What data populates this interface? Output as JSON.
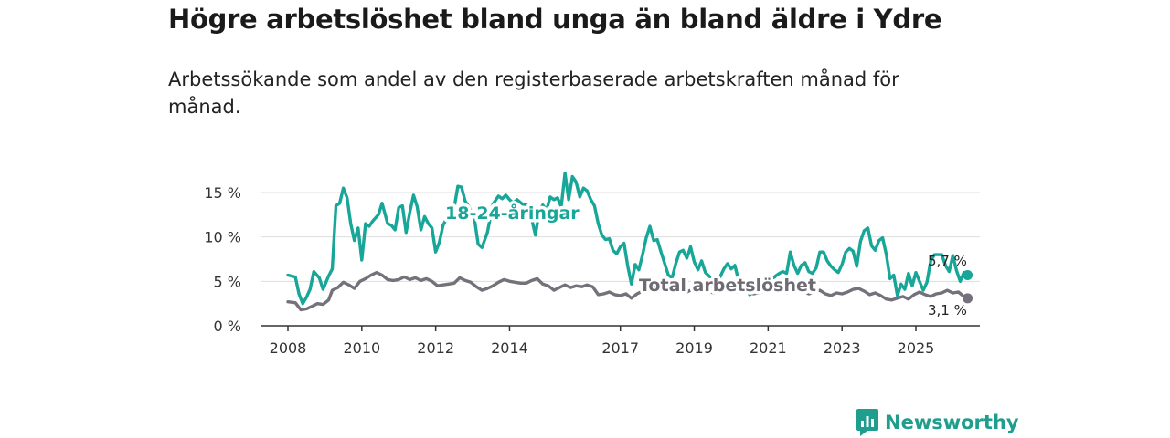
{
  "title": "Högre arbetslöshet bland unga än bland äldre i Ydre",
  "subtitle": "Arbetssökande som andel av den registerbaserade arbetskraften månad för månad.",
  "brand": {
    "name": "Newsworthy",
    "icon": "bar-chart-speech-bubble-icon"
  },
  "colors": {
    "youth": "#17a697",
    "total": "#75717a",
    "grid": "#dddddd",
    "axis": "#333333",
    "brand": "#1f9e8e"
  },
  "chart_data": {
    "type": "line",
    "title": "Högre arbetslöshet bland unga än bland äldre i Ydre",
    "xlabel": "",
    "ylabel": "",
    "xlim": [
      2007.9,
      2026.5
    ],
    "ylim": [
      0,
      17.5
    ],
    "y_ticks": [
      0,
      5,
      10,
      15
    ],
    "y_tick_labels": [
      "0 %",
      "5 %",
      "10 %",
      "15 %"
    ],
    "x_ticks": [
      2008,
      2010,
      2012,
      2014,
      2017,
      2019,
      2021,
      2023,
      2025
    ],
    "x_tick_labels": [
      "2008",
      "2010",
      "2012",
      "2014",
      "2017",
      "2019",
      "2021",
      "2023",
      "2025"
    ],
    "gridlines": "horizontal",
    "series": [
      {
        "name": "18-24-åringar",
        "label": "18-24-åringar",
        "end_label": "5,7 %",
        "color": "#17a697",
        "points": [
          [
            2008.0,
            5.7
          ],
          [
            2008.2,
            5.5
          ],
          [
            2008.3,
            3.6
          ],
          [
            2008.4,
            2.5
          ],
          [
            2008.5,
            3.2
          ],
          [
            2008.6,
            4.1
          ],
          [
            2008.7,
            6.1
          ],
          [
            2008.85,
            5.4
          ],
          [
            2008.95,
            4.1
          ],
          [
            2009.1,
            5.6
          ],
          [
            2009.2,
            6.4
          ],
          [
            2009.3,
            13.5
          ],
          [
            2009.4,
            13.8
          ],
          [
            2009.5,
            15.5
          ],
          [
            2009.6,
            14.4
          ],
          [
            2009.7,
            11.5
          ],
          [
            2009.8,
            9.6
          ],
          [
            2009.9,
            11.0
          ],
          [
            2010.0,
            7.4
          ],
          [
            2010.1,
            11.5
          ],
          [
            2010.2,
            11.2
          ],
          [
            2010.3,
            11.8
          ],
          [
            2010.45,
            12.5
          ],
          [
            2010.55,
            13.8
          ],
          [
            2010.7,
            11.5
          ],
          [
            2010.8,
            11.3
          ],
          [
            2010.9,
            10.8
          ],
          [
            2011.0,
            13.3
          ],
          [
            2011.1,
            13.5
          ],
          [
            2011.2,
            10.5
          ],
          [
            2011.3,
            12.8
          ],
          [
            2011.4,
            14.7
          ],
          [
            2011.5,
            13.4
          ],
          [
            2011.6,
            10.8
          ],
          [
            2011.7,
            12.3
          ],
          [
            2011.8,
            11.5
          ],
          [
            2011.9,
            11.0
          ],
          [
            2012.0,
            8.3
          ],
          [
            2012.1,
            9.4
          ],
          [
            2012.2,
            11.3
          ],
          [
            2012.35,
            12.5
          ],
          [
            2012.5,
            13.3
          ],
          [
            2012.6,
            15.7
          ],
          [
            2012.7,
            15.6
          ],
          [
            2012.8,
            14.0
          ],
          [
            2012.9,
            13.4
          ],
          [
            2013.05,
            12.0
          ],
          [
            2013.15,
            9.2
          ],
          [
            2013.25,
            8.8
          ],
          [
            2013.4,
            10.5
          ],
          [
            2013.55,
            13.7
          ],
          [
            2013.7,
            14.6
          ],
          [
            2013.8,
            14.3
          ],
          [
            2013.9,
            14.7
          ],
          [
            2014.0,
            14.2
          ],
          [
            2014.1,
            13.8
          ],
          [
            2014.2,
            14.2
          ],
          [
            2014.35,
            13.7
          ],
          [
            2014.5,
            13.6
          ],
          [
            2014.6,
            12.0
          ],
          [
            2014.7,
            10.2
          ],
          [
            2014.8,
            12.8
          ],
          [
            2014.9,
            13.6
          ],
          [
            2015.0,
            13.0
          ],
          [
            2015.1,
            14.5
          ],
          [
            2015.2,
            14.2
          ],
          [
            2015.3,
            14.4
          ],
          [
            2015.4,
            13.4
          ],
          [
            2015.5,
            17.2
          ],
          [
            2015.6,
            14.2
          ],
          [
            2015.7,
            16.8
          ],
          [
            2015.8,
            16.2
          ],
          [
            2015.9,
            14.5
          ],
          [
            2016.0,
            15.5
          ],
          [
            2016.1,
            15.2
          ],
          [
            2016.2,
            14.2
          ],
          [
            2016.3,
            13.5
          ],
          [
            2016.4,
            11.5
          ],
          [
            2016.5,
            10.2
          ],
          [
            2016.6,
            9.7
          ],
          [
            2016.7,
            9.8
          ],
          [
            2016.8,
            8.5
          ],
          [
            2016.9,
            8.1
          ],
          [
            2017.0,
            8.9
          ],
          [
            2017.1,
            9.3
          ],
          [
            2017.2,
            6.7
          ],
          [
            2017.3,
            4.7
          ],
          [
            2017.4,
            6.9
          ],
          [
            2017.5,
            6.3
          ],
          [
            2017.6,
            8.0
          ],
          [
            2017.7,
            9.9
          ],
          [
            2017.8,
            11.2
          ],
          [
            2017.9,
            9.6
          ],
          [
            2018.0,
            9.7
          ],
          [
            2018.1,
            8.3
          ],
          [
            2018.2,
            7.0
          ],
          [
            2018.3,
            5.7
          ],
          [
            2018.4,
            5.4
          ],
          [
            2018.5,
            7.0
          ],
          [
            2018.6,
            8.3
          ],
          [
            2018.7,
            8.5
          ],
          [
            2018.8,
            7.6
          ],
          [
            2018.9,
            8.9
          ],
          [
            2019.0,
            7.2
          ],
          [
            2019.1,
            6.3
          ],
          [
            2019.2,
            7.3
          ],
          [
            2019.3,
            6.0
          ],
          [
            2019.45,
            5.4
          ],
          [
            2019.55,
            4.4
          ],
          [
            2019.7,
            5.5
          ],
          [
            2019.8,
            6.4
          ],
          [
            2019.9,
            7.0
          ],
          [
            2020.0,
            6.4
          ],
          [
            2020.1,
            6.8
          ],
          [
            2020.2,
            5.1
          ],
          [
            2020.35,
            4.6
          ],
          [
            2020.5,
            3.5
          ],
          [
            2020.65,
            3.9
          ],
          [
            2020.8,
            4.4
          ],
          [
            2020.9,
            4.9
          ],
          [
            2021.0,
            5.4
          ],
          [
            2021.1,
            5.1
          ],
          [
            2021.2,
            5.6
          ],
          [
            2021.3,
            5.9
          ],
          [
            2021.4,
            6.1
          ],
          [
            2021.5,
            5.9
          ],
          [
            2021.6,
            8.3
          ],
          [
            2021.7,
            6.8
          ],
          [
            2021.8,
            5.9
          ],
          [
            2021.9,
            6.8
          ],
          [
            2022.0,
            7.1
          ],
          [
            2022.1,
            6.1
          ],
          [
            2022.2,
            5.9
          ],
          [
            2022.3,
            6.5
          ],
          [
            2022.4,
            8.3
          ],
          [
            2022.5,
            8.3
          ],
          [
            2022.6,
            7.3
          ],
          [
            2022.7,
            6.7
          ],
          [
            2022.8,
            6.3
          ],
          [
            2022.9,
            6.0
          ],
          [
            2023.0,
            6.9
          ],
          [
            2023.1,
            8.3
          ],
          [
            2023.2,
            8.7
          ],
          [
            2023.3,
            8.4
          ],
          [
            2023.4,
            6.7
          ],
          [
            2023.5,
            9.5
          ],
          [
            2023.6,
            10.7
          ],
          [
            2023.7,
            11.0
          ],
          [
            2023.8,
            9.0
          ],
          [
            2023.9,
            8.5
          ],
          [
            2024.0,
            9.6
          ],
          [
            2024.1,
            9.9
          ],
          [
            2024.2,
            8.0
          ],
          [
            2024.3,
            5.3
          ],
          [
            2024.4,
            5.7
          ],
          [
            2024.5,
            3.4
          ],
          [
            2024.6,
            4.7
          ],
          [
            2024.7,
            4.1
          ],
          [
            2024.8,
            5.9
          ],
          [
            2024.9,
            4.5
          ],
          [
            2025.0,
            6.0
          ],
          [
            2025.1,
            5.0
          ],
          [
            2025.2,
            4.0
          ],
          [
            2025.3,
            4.9
          ],
          [
            2025.4,
            7.3
          ],
          [
            2025.5,
            8.0
          ],
          [
            2025.6,
            8.0
          ],
          [
            2025.7,
            8.0
          ],
          [
            2025.8,
            6.8
          ],
          [
            2025.9,
            6.1
          ],
          [
            2026.0,
            7.9
          ],
          [
            2026.1,
            6.2
          ],
          [
            2026.2,
            5.0
          ],
          [
            2026.3,
            6.0
          ],
          [
            2026.4,
            5.7
          ]
        ]
      },
      {
        "name": "Total arbetslöshet",
        "label": "Total arbetslöshet",
        "end_label": "3,1 %",
        "color": "#75717a",
        "points": [
          [
            2008.0,
            2.7
          ],
          [
            2008.2,
            2.6
          ],
          [
            2008.35,
            1.8
          ],
          [
            2008.5,
            1.9
          ],
          [
            2008.65,
            2.2
          ],
          [
            2008.8,
            2.5
          ],
          [
            2008.95,
            2.4
          ],
          [
            2009.1,
            2.9
          ],
          [
            2009.2,
            4.0
          ],
          [
            2009.35,
            4.3
          ],
          [
            2009.5,
            4.9
          ],
          [
            2009.65,
            4.6
          ],
          [
            2009.8,
            4.2
          ],
          [
            2009.95,
            5.0
          ],
          [
            2010.1,
            5.3
          ],
          [
            2010.25,
            5.7
          ],
          [
            2010.4,
            6.0
          ],
          [
            2010.55,
            5.7
          ],
          [
            2010.7,
            5.2
          ],
          [
            2010.85,
            5.1
          ],
          [
            2011.0,
            5.2
          ],
          [
            2011.15,
            5.5
          ],
          [
            2011.3,
            5.2
          ],
          [
            2011.45,
            5.4
          ],
          [
            2011.6,
            5.1
          ],
          [
            2011.75,
            5.3
          ],
          [
            2011.9,
            5.0
          ],
          [
            2012.05,
            4.5
          ],
          [
            2012.2,
            4.6
          ],
          [
            2012.35,
            4.7
          ],
          [
            2012.5,
            4.8
          ],
          [
            2012.65,
            5.4
          ],
          [
            2012.8,
            5.1
          ],
          [
            2012.95,
            4.9
          ],
          [
            2013.1,
            4.4
          ],
          [
            2013.25,
            4.0
          ],
          [
            2013.4,
            4.2
          ],
          [
            2013.55,
            4.5
          ],
          [
            2013.7,
            4.9
          ],
          [
            2013.85,
            5.2
          ],
          [
            2014.0,
            5.0
          ],
          [
            2014.15,
            4.9
          ],
          [
            2014.3,
            4.8
          ],
          [
            2014.45,
            4.8
          ],
          [
            2014.6,
            5.1
          ],
          [
            2014.75,
            5.3
          ],
          [
            2014.9,
            4.7
          ],
          [
            2015.05,
            4.5
          ],
          [
            2015.2,
            4.0
          ],
          [
            2015.35,
            4.3
          ],
          [
            2015.5,
            4.6
          ],
          [
            2015.65,
            4.3
          ],
          [
            2015.8,
            4.5
          ],
          [
            2015.95,
            4.4
          ],
          [
            2016.1,
            4.6
          ],
          [
            2016.25,
            4.4
          ],
          [
            2016.4,
            3.5
          ],
          [
            2016.55,
            3.6
          ],
          [
            2016.7,
            3.8
          ],
          [
            2016.85,
            3.5
          ],
          [
            2017.0,
            3.4
          ],
          [
            2017.15,
            3.6
          ],
          [
            2017.3,
            3.1
          ],
          [
            2017.45,
            3.6
          ],
          [
            2017.6,
            3.9
          ],
          [
            2017.75,
            4.5
          ],
          [
            2017.9,
            4.6
          ],
          [
            2018.05,
            4.4
          ],
          [
            2018.2,
            4.2
          ],
          [
            2018.35,
            4.1
          ],
          [
            2018.5,
            4.0
          ],
          [
            2018.65,
            4.1
          ],
          [
            2018.8,
            3.8
          ],
          [
            2018.95,
            4.1
          ],
          [
            2019.1,
            4.3
          ],
          [
            2019.25,
            4.0
          ],
          [
            2019.4,
            3.8
          ],
          [
            2019.55,
            3.7
          ],
          [
            2019.7,
            4.0
          ],
          [
            2019.85,
            4.2
          ],
          [
            2020.0,
            4.0
          ],
          [
            2020.15,
            3.8
          ],
          [
            2020.3,
            4.1
          ],
          [
            2020.45,
            4.0
          ],
          [
            2020.6,
            3.6
          ],
          [
            2020.75,
            3.7
          ],
          [
            2020.9,
            3.9
          ],
          [
            2021.05,
            3.8
          ],
          [
            2021.2,
            4.1
          ],
          [
            2021.35,
            4.0
          ],
          [
            2021.5,
            3.7
          ],
          [
            2021.65,
            3.9
          ],
          [
            2021.8,
            4.0
          ],
          [
            2021.95,
            3.9
          ],
          [
            2022.1,
            3.6
          ],
          [
            2022.25,
            3.8
          ],
          [
            2022.4,
            4.0
          ],
          [
            2022.55,
            3.6
          ],
          [
            2022.7,
            3.4
          ],
          [
            2022.85,
            3.7
          ],
          [
            2023.0,
            3.6
          ],
          [
            2023.15,
            3.8
          ],
          [
            2023.3,
            4.1
          ],
          [
            2023.45,
            4.2
          ],
          [
            2023.6,
            3.9
          ],
          [
            2023.75,
            3.5
          ],
          [
            2023.9,
            3.7
          ],
          [
            2024.05,
            3.4
          ],
          [
            2024.2,
            3.0
          ],
          [
            2024.35,
            2.9
          ],
          [
            2024.5,
            3.1
          ],
          [
            2024.65,
            3.3
          ],
          [
            2024.8,
            3.0
          ],
          [
            2024.95,
            3.5
          ],
          [
            2025.1,
            3.8
          ],
          [
            2025.25,
            3.5
          ],
          [
            2025.4,
            3.3
          ],
          [
            2025.55,
            3.6
          ],
          [
            2025.7,
            3.7
          ],
          [
            2025.85,
            4.0
          ],
          [
            2026.0,
            3.7
          ],
          [
            2026.15,
            3.8
          ],
          [
            2026.3,
            3.3
          ],
          [
            2026.4,
            3.1
          ]
        ]
      }
    ]
  }
}
